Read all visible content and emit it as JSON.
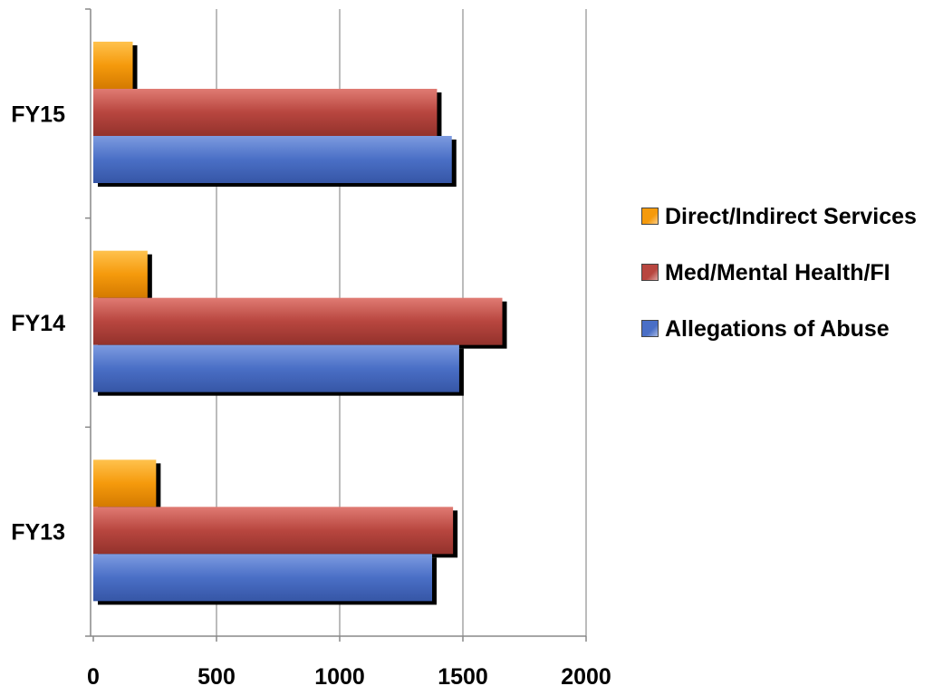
{
  "chart_data": {
    "type": "bar",
    "orientation": "horizontal",
    "categories": [
      "FY15",
      "FY14",
      "FY13"
    ],
    "series": [
      {
        "name": "Direct/Indirect Services",
        "color": "#f59a0c",
        "values": [
          160,
          220,
          255
        ]
      },
      {
        "name": "Med/Mental Health/FI",
        "color": "#b8463f",
        "values": [
          1395,
          1660,
          1460
        ]
      },
      {
        "name": "Allegations of Abuse",
        "color": "#4a6fc6",
        "values": [
          1455,
          1485,
          1375
        ]
      }
    ],
    "xlim": [
      0,
      2000
    ],
    "x_ticks": [
      "0",
      "500",
      "1000",
      "1500",
      "2000"
    ],
    "grid": "vertical",
    "legend": "right",
    "legend_order": [
      0,
      1,
      2
    ]
  }
}
